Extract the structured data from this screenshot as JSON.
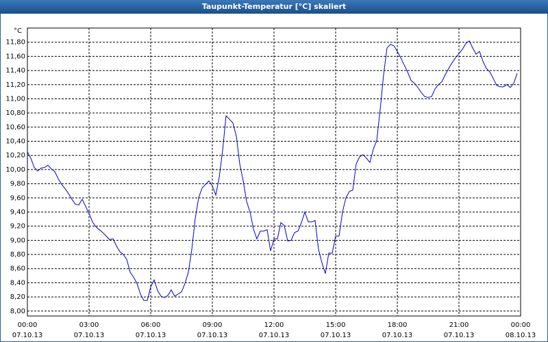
{
  "chart_data": {
    "type": "line",
    "title": "Taupunkt-Temperatur [°C] skaliert",
    "y_unit": "°C",
    "xlim": [
      0,
      1440
    ],
    "ylim": [
      7.93,
      12.0
    ],
    "grid": true,
    "xticks": [
      {
        "value": 0,
        "label": "00:00"
      },
      {
        "value": 180,
        "label": "03:00"
      },
      {
        "value": 360,
        "label": "06:00"
      },
      {
        "value": 540,
        "label": "09:00"
      },
      {
        "value": 720,
        "label": "12:00"
      },
      {
        "value": 900,
        "label": "15:00"
      },
      {
        "value": 1080,
        "label": "18:00"
      },
      {
        "value": 1260,
        "label": "21:00"
      },
      {
        "value": 1440,
        "label": "00:00"
      }
    ],
    "xtick_dates": [
      "07.10.13",
      "07.10.13",
      "07.10.13",
      "07.10.13",
      "07.10.13",
      "07.10.13",
      "07.10.13",
      "07.10.13",
      "08.10.13"
    ],
    "yticks": [
      {
        "value": 8.0,
        "label": "8,00"
      },
      {
        "value": 8.2,
        "label": "8,20"
      },
      {
        "value": 8.4,
        "label": "8,40"
      },
      {
        "value": 8.6,
        "label": "8,60"
      },
      {
        "value": 8.8,
        "label": "8,80"
      },
      {
        "value": 9.0,
        "label": "9,00"
      },
      {
        "value": 9.2,
        "label": "9,20"
      },
      {
        "value": 9.4,
        "label": "9,40"
      },
      {
        "value": 9.6,
        "label": "9,60"
      },
      {
        "value": 9.8,
        "label": "9,80"
      },
      {
        "value": 10.0,
        "label": "10,00"
      },
      {
        "value": 10.2,
        "label": "10,20"
      },
      {
        "value": 10.4,
        "label": "10,40"
      },
      {
        "value": 10.6,
        "label": "10,60"
      },
      {
        "value": 10.8,
        "label": "10,80"
      },
      {
        "value": 11.0,
        "label": "11,00"
      },
      {
        "value": 11.2,
        "label": "11,20"
      },
      {
        "value": 11.4,
        "label": "11,40"
      },
      {
        "value": 11.6,
        "label": "11,60"
      },
      {
        "value": 11.8,
        "label": "11,80"
      }
    ],
    "x": [
      0,
      10,
      20,
      30,
      40,
      50,
      60,
      70,
      80,
      90,
      100,
      110,
      120,
      130,
      140,
      150,
      160,
      170,
      180,
      190,
      200,
      210,
      220,
      230,
      240,
      250,
      260,
      270,
      280,
      290,
      300,
      310,
      320,
      330,
      340,
      350,
      360,
      370,
      380,
      390,
      400,
      410,
      420,
      430,
      440,
      450,
      460,
      470,
      480,
      490,
      500,
      510,
      520,
      530,
      540,
      550,
      560,
      570,
      580,
      590,
      600,
      610,
      620,
      630,
      640,
      650,
      660,
      670,
      680,
      690,
      700,
      710,
      720,
      730,
      740,
      750,
      760,
      770,
      780,
      790,
      800,
      810,
      820,
      830,
      840,
      850,
      860,
      870,
      880,
      890,
      900,
      910,
      920,
      930,
      940,
      950,
      960,
      970,
      980,
      990,
      1000,
      1010,
      1020,
      1030,
      1040,
      1050,
      1060,
      1070,
      1080,
      1090,
      1100,
      1110,
      1120,
      1130,
      1140,
      1150,
      1160,
      1170,
      1180,
      1190,
      1200,
      1210,
      1220,
      1230,
      1240,
      1250,
      1260,
      1270,
      1280,
      1290,
      1300,
      1310,
      1320,
      1330,
      1340,
      1350,
      1360,
      1370,
      1380,
      1390,
      1400,
      1410,
      1420,
      1430
    ],
    "series": [
      {
        "name": "Taupunkt-Temperatur",
        "color": "#0000c8",
        "values": [
          10.25,
          10.16,
          10.03,
          9.98,
          10.02,
          10.03,
          10.06,
          10.01,
          9.97,
          9.87,
          9.79,
          9.73,
          9.66,
          9.58,
          9.51,
          9.5,
          9.58,
          9.48,
          9.38,
          9.26,
          9.19,
          9.15,
          9.11,
          9.06,
          9.01,
          9.02,
          8.92,
          8.84,
          8.8,
          8.73,
          8.55,
          8.48,
          8.39,
          8.24,
          8.15,
          8.15,
          8.34,
          8.44,
          8.29,
          8.21,
          8.19,
          8.22,
          8.3,
          8.21,
          8.24,
          8.27,
          8.39,
          8.55,
          8.87,
          9.31,
          9.6,
          9.74,
          9.79,
          9.84,
          9.77,
          9.64,
          9.89,
          10.27,
          10.76,
          10.71,
          10.66,
          10.47,
          10.08,
          9.84,
          9.55,
          9.4,
          9.16,
          9.02,
          9.13,
          9.13,
          9.15,
          8.85,
          9.02,
          9.02,
          9.25,
          9.21,
          8.99,
          9.0,
          9.11,
          9.13,
          9.25,
          9.4,
          9.26,
          9.26,
          9.28,
          8.87,
          8.68,
          8.53,
          8.82,
          8.82,
          9.06,
          9.06,
          9.4,
          9.6,
          9.69,
          9.71,
          10.08,
          10.18,
          10.21,
          10.16,
          10.1,
          10.29,
          10.41,
          10.85,
          11.34,
          11.72,
          11.77,
          11.75,
          11.67,
          11.58,
          11.48,
          11.38,
          11.26,
          11.22,
          11.16,
          11.09,
          11.03,
          11.02,
          11.03,
          11.14,
          11.2,
          11.24,
          11.34,
          11.43,
          11.51,
          11.58,
          11.64,
          11.7,
          11.78,
          11.82,
          11.72,
          11.63,
          11.67,
          11.53,
          11.43,
          11.38,
          11.29,
          11.19,
          11.17,
          11.17,
          11.2,
          11.16,
          11.22,
          11.36
        ]
      }
    ]
  }
}
